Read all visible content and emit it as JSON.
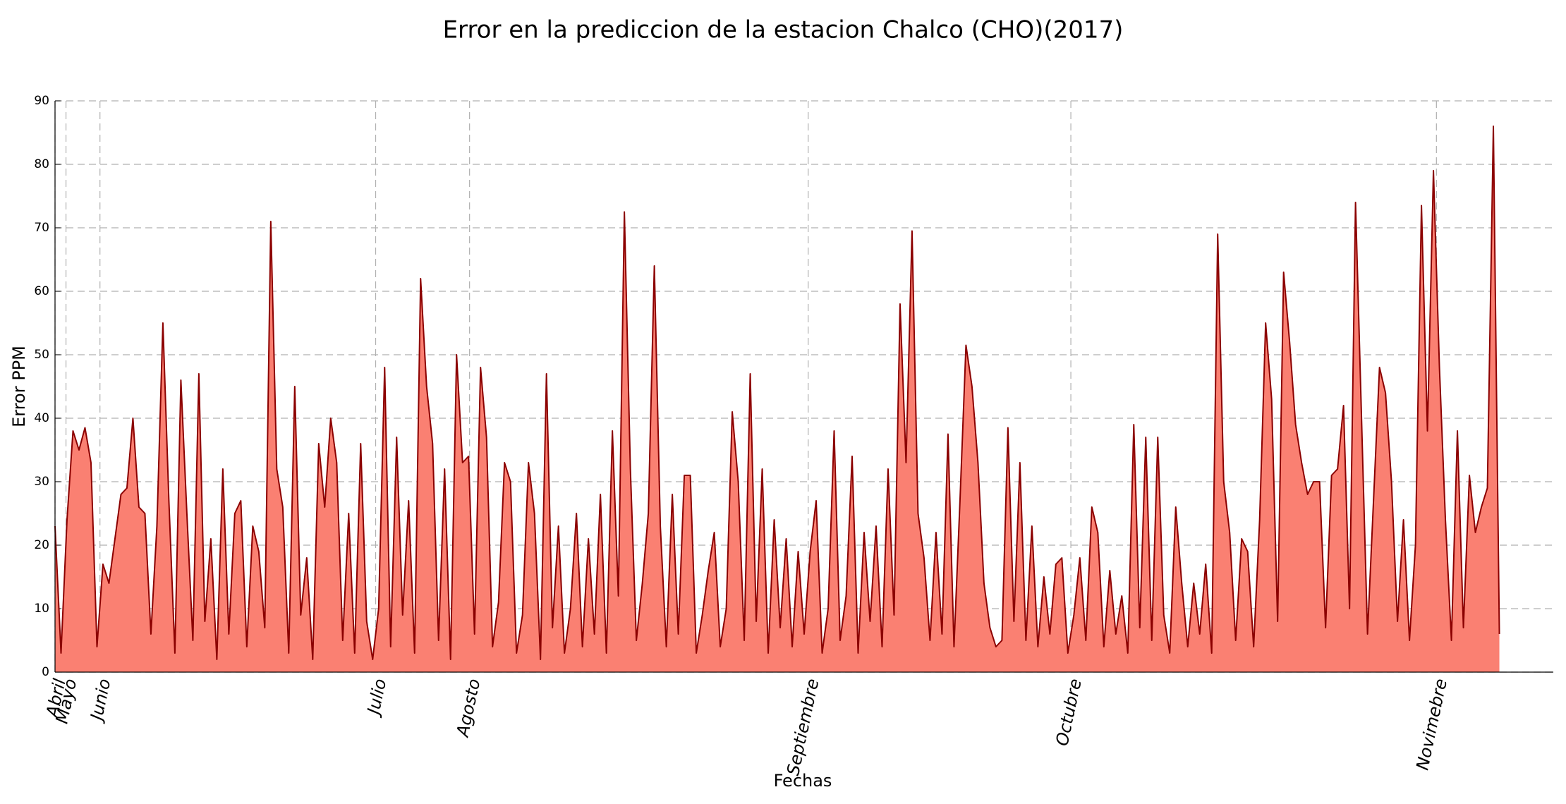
{
  "chart_data": {
    "type": "area",
    "title": "Error en la prediccion de la estacion Chalco (CHO)(2017)",
    "xlabel": "Fechas",
    "ylabel": "Error PPM",
    "color": "#8b0000",
    "fill": "#fa8072",
    "grid": true,
    "xlim": [
      0,
      250
    ],
    "xticks": [
      {
        "value": 0,
        "label": "Abril"
      },
      {
        "value": 1.83,
        "label": "Mayo"
      },
      {
        "value": 7.5,
        "label": "Junio"
      },
      {
        "value": 53.5,
        "label": "Julio"
      },
      {
        "value": 69.17,
        "label": "Agosto"
      },
      {
        "value": 125.67,
        "label": "Septiembre"
      },
      {
        "value": 169.5,
        "label": "Octubre"
      },
      {
        "value": 230.5,
        "label": "Novimebre"
      }
    ],
    "ylim": [
      0,
      90
    ],
    "yticks": [
      0,
      10,
      20,
      30,
      40,
      50,
      60,
      70,
      80,
      90
    ],
    "values": [
      23,
      3,
      24,
      38,
      35,
      38.5,
      33,
      4,
      17,
      14,
      21,
      28,
      29,
      40,
      26,
      25,
      6,
      23,
      55,
      27,
      3,
      46,
      25,
      5,
      47,
      8,
      21,
      2,
      32,
      6,
      25,
      27,
      4,
      23,
      19,
      7,
      71,
      32,
      26,
      3,
      45,
      9,
      18,
      2,
      36,
      26,
      40,
      33,
      5,
      25,
      3,
      36,
      8,
      2,
      10,
      48,
      4,
      37,
      9,
      27,
      3,
      62,
      45,
      36,
      5,
      32,
      2,
      50,
      33,
      34,
      6,
      48,
      37,
      4,
      11,
      33,
      30,
      3,
      9,
      33,
      25,
      2,
      47,
      7,
      23,
      3,
      10,
      25,
      4,
      21,
      6,
      28,
      3,
      38,
      12,
      72.5,
      32,
      5,
      14,
      25,
      64,
      23,
      4,
      28,
      6,
      31,
      31,
      3,
      9,
      16,
      22,
      4,
      10,
      41,
      30,
      5,
      47,
      8,
      32,
      3,
      24,
      7,
      21,
      4,
      19,
      6,
      19,
      27,
      3,
      10,
      38,
      5,
      12,
      34,
      3,
      22,
      8,
      23,
      4,
      32,
      9,
      58,
      33,
      69.5,
      25,
      18,
      5,
      22,
      6,
      37.5,
      4,
      27,
      51.5,
      45,
      33,
      14,
      7,
      4,
      5,
      38.5,
      8,
      33,
      5,
      23,
      4,
      15,
      6,
      17,
      18,
      3,
      9,
      18,
      5,
      26,
      22,
      4,
      16,
      6,
      12,
      3,
      39,
      7,
      37,
      5,
      37,
      9,
      3,
      26,
      14,
      4,
      14,
      6,
      17,
      3,
      69,
      30,
      22,
      5,
      21,
      19,
      4,
      24,
      55,
      43,
      8,
      63,
      52,
      39,
      33,
      28,
      30,
      30,
      7,
      31,
      32,
      42,
      10,
      74,
      40,
      6,
      27,
      48,
      44,
      30,
      8,
      24,
      5,
      20,
      73.5,
      38,
      79,
      48,
      24,
      5,
      38,
      7,
      31,
      22,
      26,
      29,
      86,
      6
    ]
  }
}
